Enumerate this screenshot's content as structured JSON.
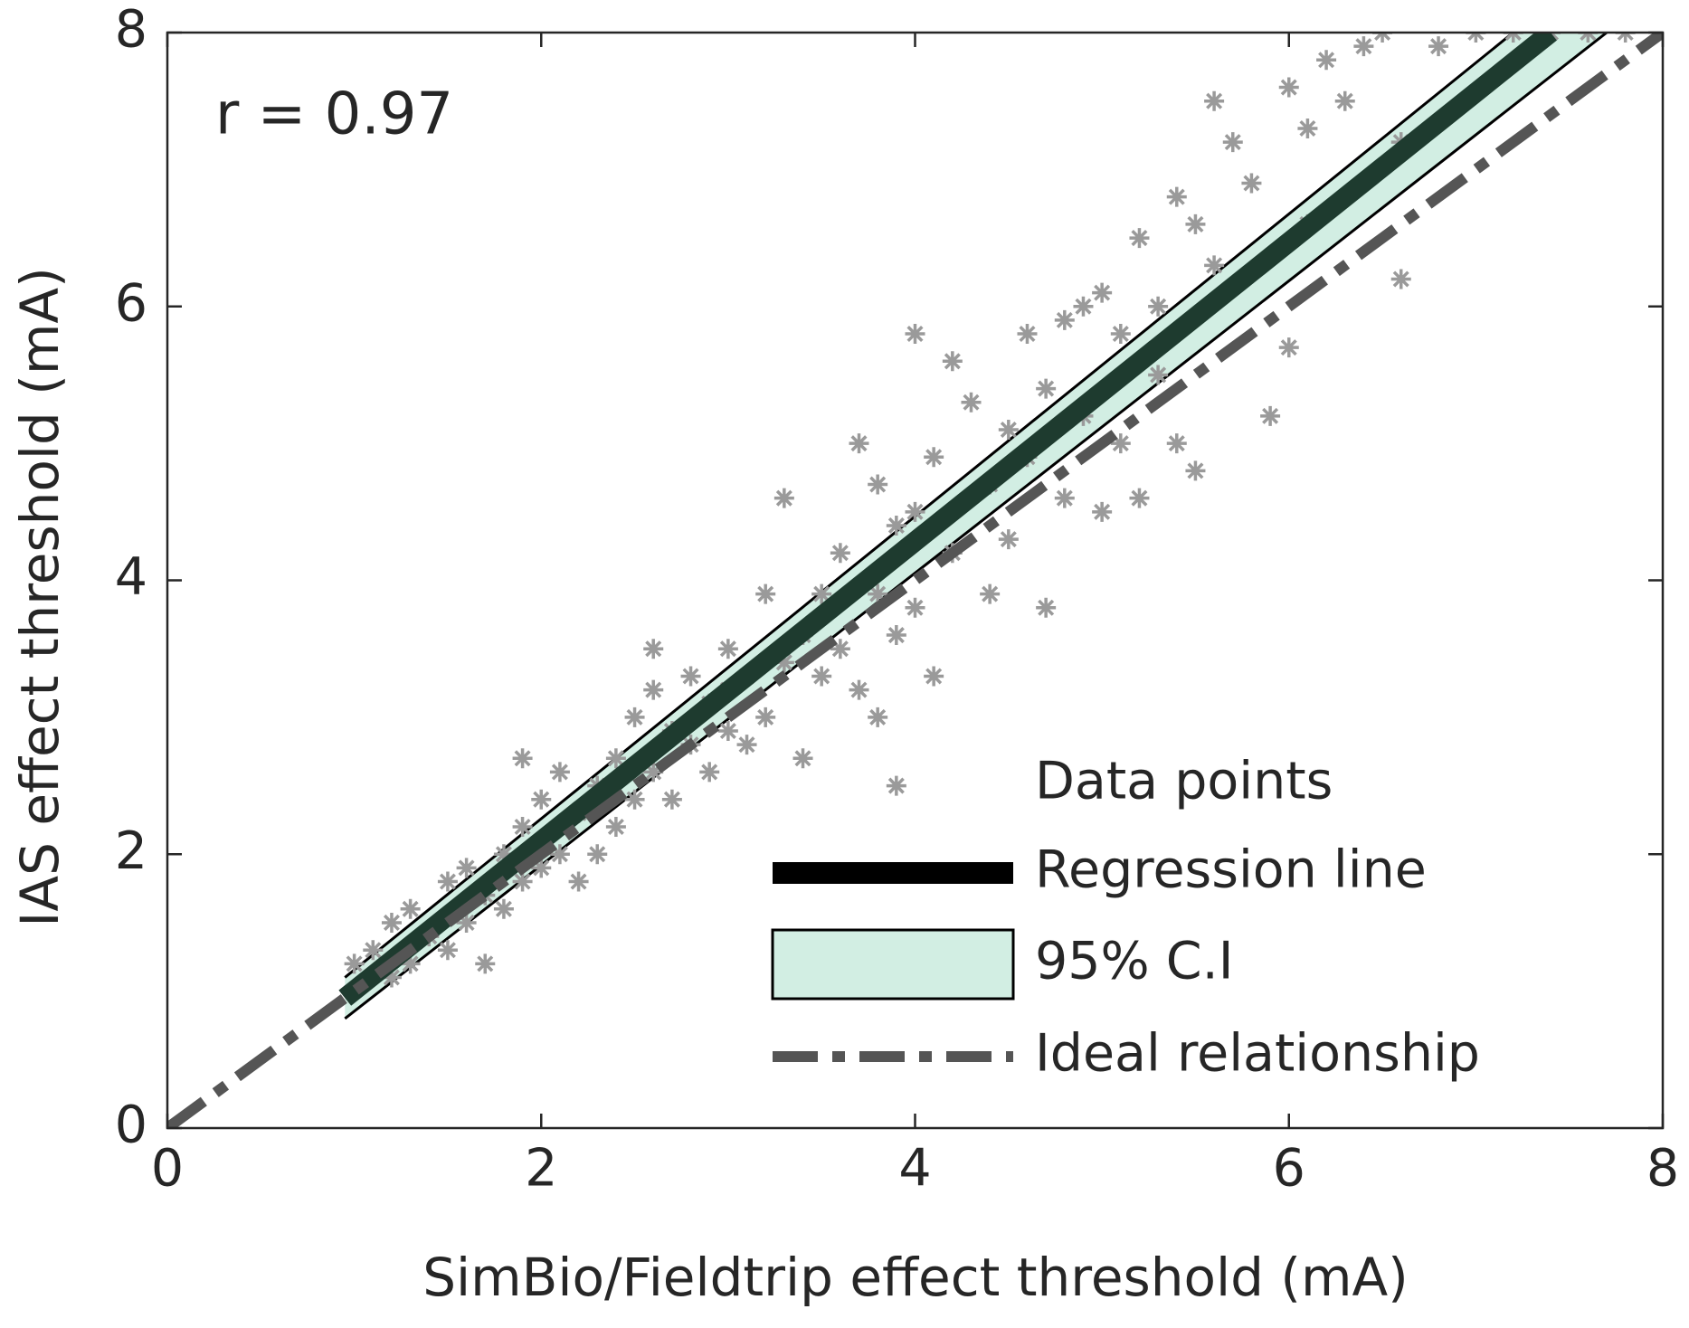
{
  "chart_data": {
    "type": "scatter",
    "xlabel": "SimBio/Fieldtrip effect threshold (mA)",
    "ylabel": "IAS effect threshold (mA)",
    "annotation": "r = 0.97",
    "xlim": [
      0,
      8
    ],
    "ylim": [
      0,
      8
    ],
    "xticks": [
      0,
      2,
      4,
      6,
      8
    ],
    "yticks": [
      0,
      2,
      4,
      6,
      8
    ],
    "legend": "lower right",
    "series": [
      {
        "name": "Data points",
        "type": "scatter",
        "color": "#9a9a9a",
        "x": [
          1.0,
          1.1,
          1.2,
          1.2,
          1.3,
          1.3,
          1.4,
          1.5,
          1.5,
          1.6,
          1.6,
          1.7,
          1.7,
          1.8,
          1.8,
          1.9,
          1.9,
          1.9,
          2.0,
          2.0,
          2.1,
          2.1,
          2.2,
          2.2,
          2.3,
          2.3,
          2.4,
          2.4,
          2.5,
          2.5,
          2.6,
          2.6,
          2.6,
          2.7,
          2.7,
          2.8,
          2.8,
          2.9,
          2.9,
          3.0,
          3.0,
          3.1,
          3.1,
          3.2,
          3.2,
          3.3,
          3.3,
          3.4,
          3.4,
          3.5,
          3.5,
          3.6,
          3.6,
          3.7,
          3.7,
          3.8,
          3.8,
          3.8,
          3.9,
          3.9,
          3.9,
          4.0,
          4.0,
          4.1,
          4.1,
          4.2,
          4.3,
          4.4,
          4.4,
          4.5,
          4.5,
          4.6,
          4.6,
          4.7,
          4.7,
          4.8,
          4.8,
          4.9,
          4.9,
          5.0,
          5.0,
          5.1,
          5.1,
          5.2,
          5.2,
          5.3,
          5.3,
          5.4,
          5.4,
          5.5,
          5.5,
          5.6,
          5.6,
          5.7,
          5.8,
          5.9,
          6.0,
          6.1,
          6.1,
          6.2,
          6.3,
          6.4,
          6.5,
          6.6,
          6.6,
          6.8,
          7.0,
          7.2,
          7.4,
          7.6,
          7.8,
          4.0,
          4.2,
          6.0,
          3.0
        ],
        "y": [
          1.2,
          1.3,
          1.5,
          1.1,
          1.6,
          1.2,
          1.4,
          1.8,
          1.3,
          1.9,
          1.5,
          1.7,
          1.2,
          2.0,
          1.6,
          2.7,
          2.2,
          1.8,
          2.4,
          1.9,
          2.6,
          2.0,
          2.3,
          1.8,
          2.5,
          2.0,
          2.7,
          2.2,
          3.0,
          2.4,
          3.5,
          3.2,
          2.6,
          2.9,
          2.4,
          3.3,
          2.8,
          3.1,
          2.6,
          3.5,
          2.9,
          3.3,
          2.8,
          3.9,
          3.0,
          4.6,
          3.4,
          3.6,
          2.7,
          3.9,
          3.3,
          4.2,
          3.5,
          5.0,
          3.2,
          4.7,
          3.9,
          3.0,
          4.4,
          3.6,
          2.5,
          4.5,
          3.8,
          4.9,
          3.3,
          4.2,
          5.3,
          4.7,
          3.9,
          5.1,
          4.3,
          5.8,
          4.9,
          5.4,
          3.8,
          5.9,
          4.6,
          6.0,
          5.2,
          6.1,
          4.5,
          5.8,
          5.0,
          6.5,
          4.6,
          6.0,
          5.5,
          6.8,
          5.0,
          6.6,
          4.8,
          7.5,
          6.3,
          7.2,
          6.9,
          5.2,
          7.6,
          7.3,
          6.6,
          7.8,
          7.5,
          7.9,
          8.0,
          7.2,
          6.2,
          7.9,
          8.0,
          8.0,
          8.0,
          8.0,
          8.0,
          5.8,
          5.6,
          5.7,
          3.2
        ]
      },
      {
        "name": "Regression line",
        "type": "line",
        "color": "#1e3b2f",
        "x": [
          0.95,
          7.4
        ],
        "y": [
          0.95,
          8
        ]
      },
      {
        "name": "95% C.I",
        "type": "band",
        "color": "#d2eee3",
        "upper": {
          "x": [
            0.95,
            7.2
          ],
          "y": [
            1.1,
            8
          ]
        },
        "lower": {
          "x": [
            0.95,
            7.7
          ],
          "y": [
            0.8,
            8
          ]
        }
      },
      {
        "name": "Ideal relationship",
        "type": "dashed",
        "color": "#555555",
        "x": [
          0,
          8
        ],
        "y": [
          0,
          8
        ]
      }
    ]
  }
}
